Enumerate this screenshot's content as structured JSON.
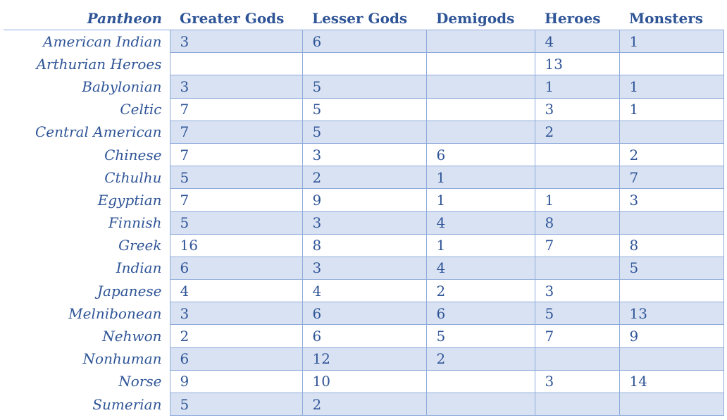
{
  "table": {
    "headers": [
      "Pantheon",
      "Greater Gods",
      "Lesser Gods",
      "Demigods",
      "Heroes",
      "Monsters"
    ],
    "rows": [
      [
        "American Indian",
        "3",
        "6",
        "",
        "4",
        "1"
      ],
      [
        "Arthurian Heroes",
        "",
        "",
        "",
        "13",
        ""
      ],
      [
        "Babylonian",
        "3",
        "5",
        "",
        "1",
        "1"
      ],
      [
        "Celtic",
        "7",
        "5",
        "",
        "3",
        "1"
      ],
      [
        "Central American",
        "7",
        "5",
        "",
        "2",
        ""
      ],
      [
        "Chinese",
        "7",
        "3",
        "6",
        "",
        "2"
      ],
      [
        "Cthulhu",
        "5",
        "2",
        "1",
        "",
        "7"
      ],
      [
        "Egyptian",
        "7",
        "9",
        "1",
        "1",
        "3"
      ],
      [
        "Finnish",
        "5",
        "3",
        "4",
        "8",
        ""
      ],
      [
        "Greek",
        "16",
        "8",
        "1",
        "7",
        "8"
      ],
      [
        "Indian",
        "6",
        "3",
        "4",
        "",
        "5"
      ],
      [
        "Japanese",
        "4",
        "4",
        "2",
        "3",
        ""
      ],
      [
        "Melnibonean",
        "3",
        "6",
        "6",
        "5",
        "13"
      ],
      [
        "Nehwon",
        "2",
        "6",
        "5",
        "7",
        "9"
      ],
      [
        "Nonhuman",
        "6",
        "12",
        "2",
        "",
        ""
      ],
      [
        "Norse",
        "9",
        "10",
        "",
        "3",
        "14"
      ],
      [
        "Sumerian",
        "5",
        "2",
        "",
        "",
        ""
      ]
    ]
  },
  "colors": {
    "text": "#2F5597",
    "band": "#D9E2F3",
    "border": "#8EAADB"
  }
}
